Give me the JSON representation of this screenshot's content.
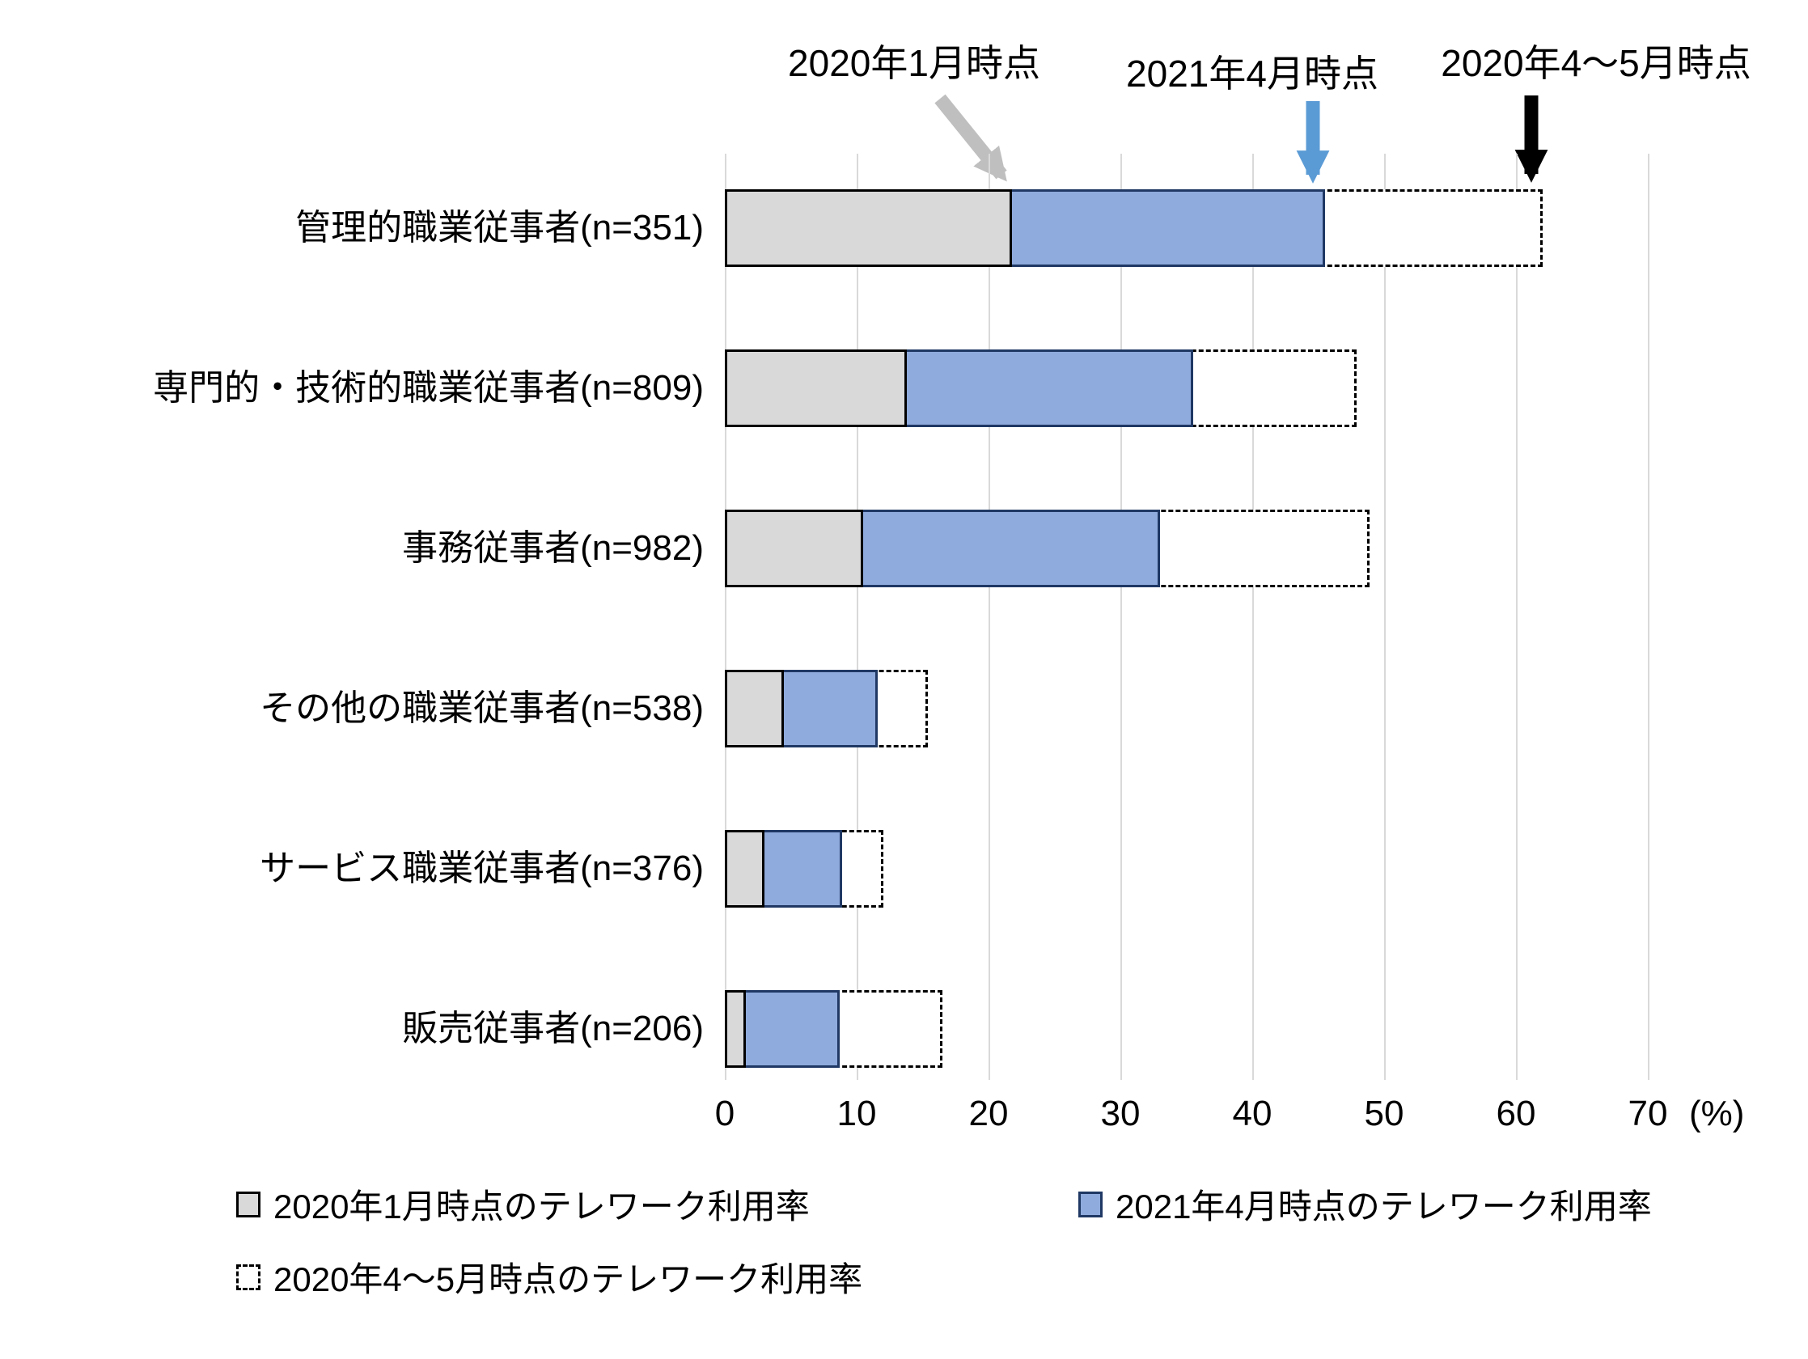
{
  "chart_data": {
    "type": "bar",
    "orientation": "horizontal",
    "title": "",
    "categories": [
      "管理的職業従事者(n=351)",
      "専門的・技術的職業従事者(n=809)",
      "事務従事者(n=982)",
      "その他の職業従事者(n=538)",
      "サービス職業従事者(n=376)",
      "販売従事者(n=206)"
    ],
    "series": [
      {
        "name": "2020年1月時点のテレワーク利用率",
        "style": "solid",
        "fill_color": "#d9d9d9",
        "border_color": "#000000",
        "values": [
          21.8,
          13.8,
          10.5,
          4.5,
          3.0,
          1.6
        ]
      },
      {
        "name": "2021年4月時点のテレワーク利用率",
        "style": "solid",
        "fill_color": "#8faadc",
        "border_color": "#1f3864",
        "values": [
          45.5,
          35.5,
          33.0,
          11.6,
          8.9,
          8.7
        ]
      },
      {
        "name": "2020年4～5月時点のテレワーク利用率",
        "style": "dashed",
        "fill_color": "#ffffff",
        "border_color": "#000000",
        "values": [
          62.0,
          47.9,
          48.9,
          15.4,
          12.0,
          16.5
        ]
      }
    ],
    "annotations": [
      {
        "label": "2020年1月時点",
        "arrow_color": "#bfbfbf",
        "points_to": "end of gray bar, row 1"
      },
      {
        "label": "2021年4月時点",
        "arrow_color": "#5b9bd5",
        "points_to": "end of blue bar, row 1"
      },
      {
        "label": "2020年4～5月時点",
        "arrow_color": "#000000",
        "points_to": "end of dashed bar, row 1"
      }
    ],
    "xlim": [
      0,
      70
    ],
    "x_ticks": [
      "0",
      "10",
      "20",
      "30",
      "40",
      "50",
      "60",
      "70"
    ],
    "x_unit_label": "(%)",
    "grid": true,
    "gridline_color": "#d9d9d9",
    "bar_layout": "overlapped",
    "legend_position": "bottom"
  }
}
